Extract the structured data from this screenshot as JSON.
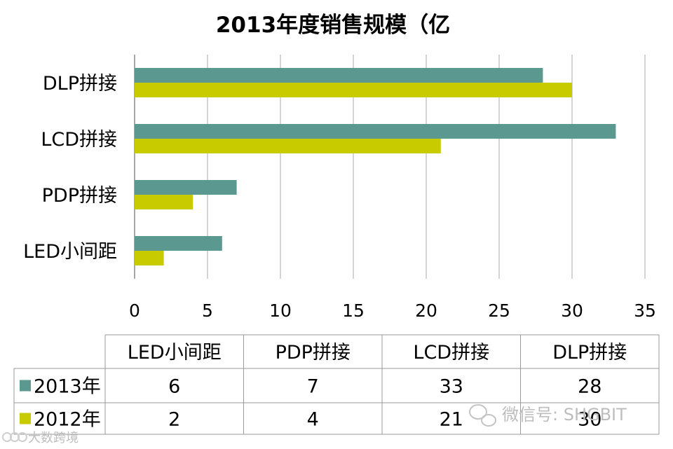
{
  "chart_data": {
    "type": "bar",
    "orientation": "horizontal",
    "title": "2013年度销售规模（亿",
    "categories_top_to_bottom": [
      "DLP拼接",
      "LCD拼接",
      "PDP拼接",
      "LED小间距"
    ],
    "table_columns": [
      "LED小间距",
      "PDP拼接",
      "LCD拼接",
      "DLP拼接"
    ],
    "series": [
      {
        "name": "2013年",
        "color": "#5b9890",
        "values": {
          "LED小间距": 6,
          "PDP拼接": 7,
          "LCD拼接": 33,
          "DLP拼接": 28
        }
      },
      {
        "name": "2012年",
        "color": "#c8cb00",
        "values": {
          "LED小间距": 2,
          "PDP拼接": 4,
          "LCD拼接": 21,
          "DLP拼接": 30
        }
      }
    ],
    "xlim": [
      0,
      35
    ],
    "xticks": [
      0,
      5,
      10,
      15,
      20,
      25,
      30,
      35
    ],
    "grid": true,
    "legend": "data-table"
  },
  "watermark": {
    "text": "微信号: SHGBIT"
  },
  "footer": {
    "text": "大数跨境"
  }
}
